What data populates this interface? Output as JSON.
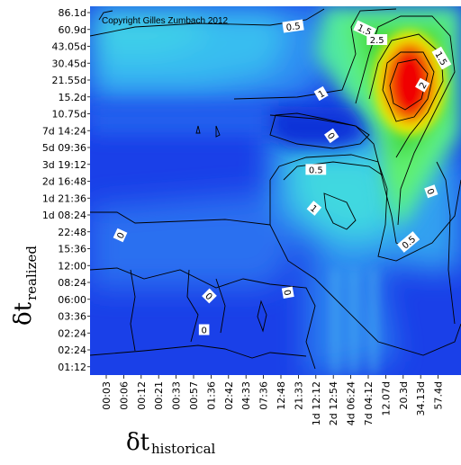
{
  "chart_data": {
    "type": "heatmap",
    "copyright": "Copyright Gilles Zumbach 2012",
    "xlabel": {
      "symbol": "δt",
      "subscript": "historical"
    },
    "ylabel": {
      "symbol": "δt",
      "subscript": "realized"
    },
    "x_ticks": [
      "00:03",
      "00:06",
      "00:12",
      "00:21",
      "00:33",
      "00:57",
      "01:36",
      "02:42",
      "04:33",
      "07:36",
      "12:48",
      "21:33",
      "1d 12:12",
      "2d 12:54",
      "4d 06:24",
      "7d 04:12",
      "12.07d",
      "20.3d",
      "34.13d",
      "57.4d"
    ],
    "y_ticks": [
      "86.1d",
      "60.9d",
      "43.05d",
      "30.45d",
      "21.55d",
      "15.2d",
      "10.75d",
      "7d 14:24",
      "5d 09:36",
      "3d 19:12",
      "2d 16:48",
      "1d 21:36",
      "1d 08:24",
      "22:48",
      "15:36",
      "12:00",
      "08:24",
      "06:00",
      "03:36",
      "02:24",
      "02:24",
      "01:12"
    ],
    "colorscale": [
      "#1030e0",
      "#2060f0",
      "#30b0f0",
      "#40e0d0",
      "#60f080",
      "#30d030",
      "#f0f000",
      "#f08000",
      "#f00000"
    ],
    "value_range": [
      0,
      3.5
    ],
    "contour_levels": [
      0,
      0.5,
      1,
      1.5,
      2,
      2.5
    ],
    "contour_labels": [
      {
        "text": "0.5",
        "x_index": 10.7,
        "y_index": 0.8,
        "angle": -8
      },
      {
        "text": "1.5",
        "x_index": 14.8,
        "y_index": 1.0,
        "angle": 25
      },
      {
        "text": "2.5",
        "x_index": 15.5,
        "y_index": 1.6,
        "angle": 0
      },
      {
        "text": "1.5",
        "x_index": 19.2,
        "y_index": 2.7,
        "angle": 60
      },
      {
        "text": "1",
        "x_index": 12.3,
        "y_index": 4.8,
        "angle": -30
      },
      {
        "text": "2",
        "x_index": 18.1,
        "y_index": 4.3,
        "angle": -60
      },
      {
        "text": "0",
        "x_index": 12.9,
        "y_index": 7.3,
        "angle": 55
      },
      {
        "text": "0.5",
        "x_index": 12.0,
        "y_index": 9.3,
        "angle": 0
      },
      {
        "text": "1",
        "x_index": 11.9,
        "y_index": 11.6,
        "angle": 40
      },
      {
        "text": "0",
        "x_index": 18.6,
        "y_index": 10.6,
        "angle": 70
      },
      {
        "text": "0.5",
        "x_index": 17.3,
        "y_index": 13.6,
        "angle": -40
      },
      {
        "text": "0",
        "x_index": 0.8,
        "y_index": 13.2,
        "angle": -65
      },
      {
        "text": "0",
        "x_index": 5.9,
        "y_index": 16.8,
        "angle": 45
      },
      {
        "text": "0",
        "x_index": 10.4,
        "y_index": 16.6,
        "angle": 80
      },
      {
        "text": "0",
        "x_index": 5.6,
        "y_index": 18.8,
        "angle": 0
      }
    ]
  }
}
